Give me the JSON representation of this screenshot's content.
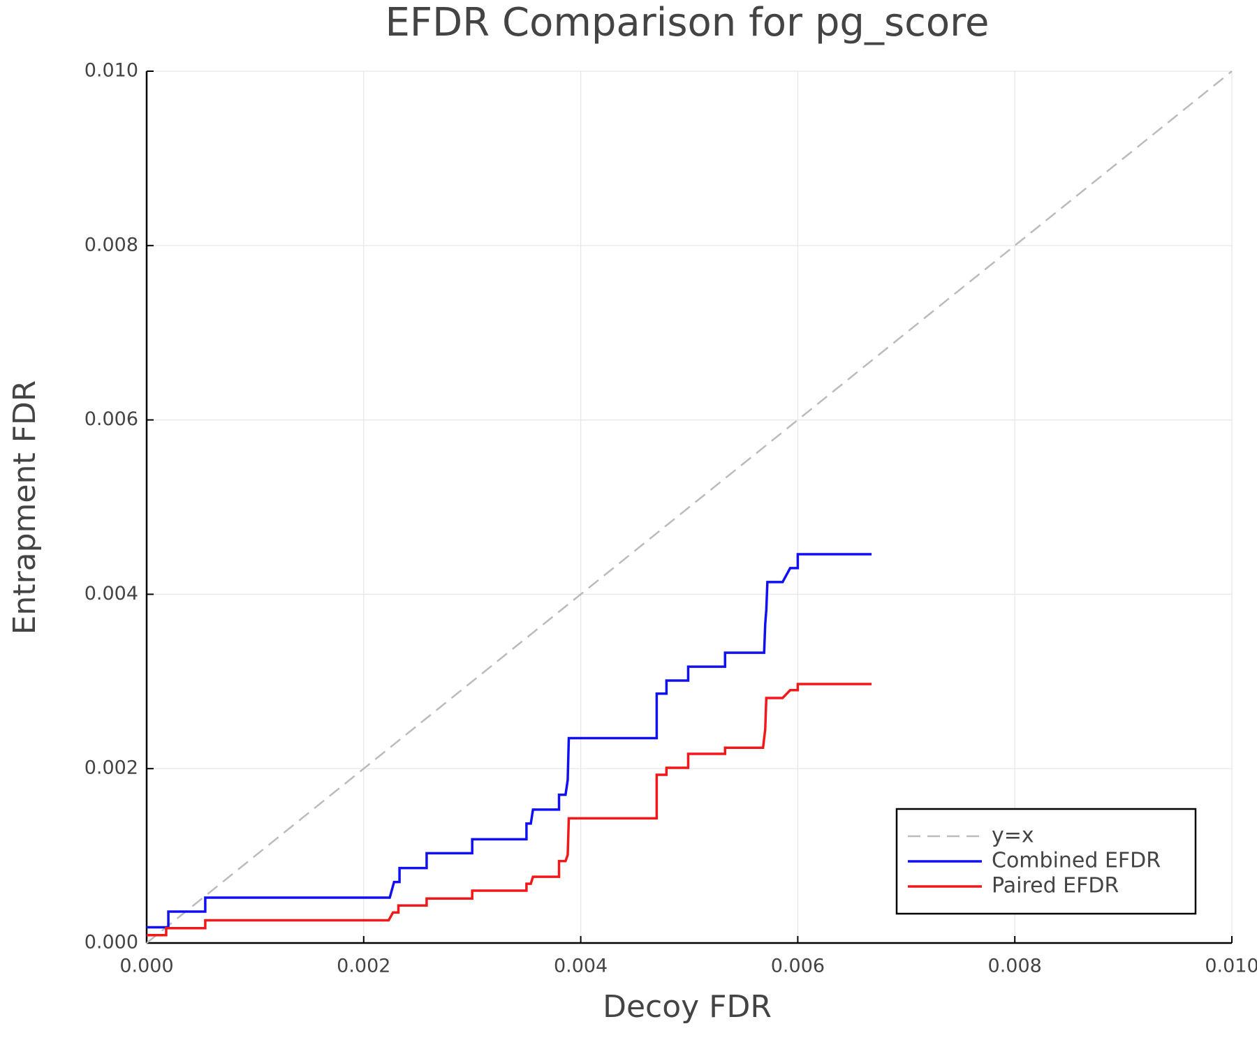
{
  "chart_data": {
    "type": "line",
    "title": "EFDR Comparison for pg_score",
    "xlabel": "Decoy FDR",
    "ylabel": "Entrapment FDR",
    "xlim": [
      0,
      0.01
    ],
    "ylim": [
      0,
      0.01
    ],
    "xticks": [
      {
        "value": 0,
        "label": "0.000"
      },
      0.002,
      0.004,
      0.006,
      0.008,
      {
        "value": 0.01,
        "label": "0.010"
      }
    ],
    "yticks": [
      {
        "value": 0,
        "label": "0.000"
      },
      0.002,
      0.004,
      0.006,
      0.008,
      {
        "value": 0.01,
        "label": "0.010"
      }
    ],
    "grid": true,
    "legend": "lower right",
    "series": [
      {
        "name": "y=x",
        "color": "#bbbbbb",
        "dashed": true,
        "x": [
          0,
          0.01
        ],
        "values": [
          0,
          0.01
        ]
      },
      {
        "name": "Combined EFDR",
        "color": "#1010f0",
        "dashed": false,
        "x": [
          0,
          0.0002,
          0.0002,
          0.00054,
          0.00054,
          0.00224,
          0.00228,
          0.00233,
          0.00233,
          0.00258,
          0.00258,
          0.003,
          0.003,
          0.0035,
          0.0035,
          0.00354,
          0.00356,
          0.0038,
          0.0038,
          0.00386,
          0.00388,
          0.00389,
          0.0047,
          0.0047,
          0.00479,
          0.00479,
          0.00499,
          0.00499,
          0.00533,
          0.00533,
          0.00569,
          0.0057,
          0.00571,
          0.00572,
          0.00586,
          0.00593,
          0.006,
          0.006,
          0.00668
        ],
        "values": [
          0.00018,
          0.00018,
          0.00036,
          0.00036,
          0.00052,
          0.00052,
          0.0007,
          0.0007,
          0.00086,
          0.00086,
          0.00103,
          0.00103,
          0.00119,
          0.00119,
          0.00137,
          0.00137,
          0.00153,
          0.00153,
          0.0017,
          0.0017,
          0.00187,
          0.00235,
          0.00235,
          0.00286,
          0.00286,
          0.00301,
          0.00301,
          0.00317,
          0.00317,
          0.00333,
          0.00333,
          0.00366,
          0.00382,
          0.00414,
          0.00414,
          0.0043,
          0.0043,
          0.00446,
          0.00446
        ]
      },
      {
        "name": "Paired EFDR",
        "color": "#f01818",
        "dashed": false,
        "x": [
          0,
          0.00018,
          0.00018,
          0.00054,
          0.00054,
          0.00223,
          0.00227,
          0.00232,
          0.00232,
          0.00258,
          0.00258,
          0.003,
          0.003,
          0.0035,
          0.0035,
          0.00354,
          0.00356,
          0.0038,
          0.0038,
          0.00386,
          0.00388,
          0.00389,
          0.0047,
          0.0047,
          0.00479,
          0.00479,
          0.00499,
          0.00499,
          0.00533,
          0.00533,
          0.00568,
          0.0057,
          0.00571,
          0.00586,
          0.00593,
          0.006,
          0.006,
          0.00668
        ],
        "values": [
          9e-05,
          9e-05,
          0.00017,
          0.00017,
          0.00026,
          0.00026,
          0.00035,
          0.00035,
          0.00043,
          0.00043,
          0.00051,
          0.00051,
          0.0006,
          0.0006,
          0.00068,
          0.00068,
          0.00076,
          0.00076,
          0.00094,
          0.00094,
          0.00101,
          0.00143,
          0.00143,
          0.00193,
          0.00193,
          0.00201,
          0.00201,
          0.00217,
          0.00217,
          0.00224,
          0.00224,
          0.00245,
          0.00281,
          0.00281,
          0.0029,
          0.0029,
          0.00297,
          0.00297
        ]
      }
    ]
  }
}
